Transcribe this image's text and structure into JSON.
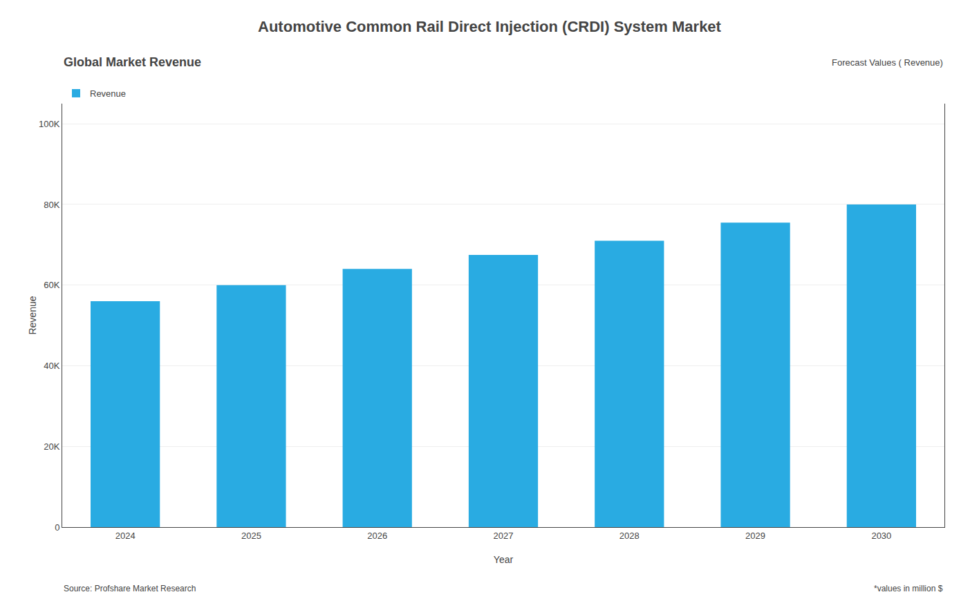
{
  "chart_data": {
    "type": "bar",
    "title": "Automotive Common Rail Direct Injection (CRDI) System Market",
    "subtitle": "Global Market Revenue",
    "annotations": [
      "Forecast Values ( Revenue)",
      "Source: Profshare Market Research",
      "*values in million $"
    ],
    "x_label": "Year",
    "y_label": "Revenue",
    "categories": [
      "2024",
      "2025",
      "2026",
      "2027",
      "2028",
      "2029",
      "2030"
    ],
    "series": [
      {
        "name": "Revenue",
        "color": "#29ABE2",
        "values": [
          56000,
          60000,
          64000,
          67500,
          71000,
          75500,
          80000
        ]
      }
    ],
    "ylim": [
      0,
      105000
    ],
    "yticks": [
      0,
      {
        "value": 20000,
        "label": "20K"
      },
      {
        "value": 40000,
        "label": "40K"
      },
      {
        "value": 60000,
        "label": "60K"
      },
      {
        "value": 80000,
        "label": "80K"
      },
      {
        "value": 100000,
        "label": "100K"
      }
    ],
    "grid": true,
    "legend": "top-left"
  }
}
